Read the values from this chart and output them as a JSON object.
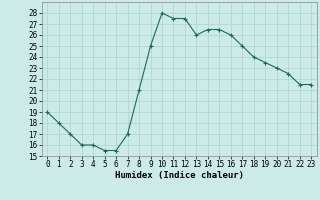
{
  "x": [
    0,
    1,
    2,
    3,
    4,
    5,
    6,
    7,
    8,
    9,
    10,
    11,
    12,
    13,
    14,
    15,
    16,
    17,
    18,
    19,
    20,
    21,
    22,
    23
  ],
  "y": [
    19,
    18,
    17,
    16,
    16,
    15.5,
    15.5,
    17,
    21,
    25,
    28,
    27.5,
    27.5,
    26,
    26.5,
    26.5,
    26,
    25,
    24,
    23.5,
    23,
    22.5,
    21.5,
    21.5
  ],
  "line_color": "#1a6b5a",
  "marker": "+",
  "marker_color": "#1a6b5a",
  "bg_color": "#cceae7",
  "grid_color": "#aad4d0",
  "xlabel": "Humidex (Indice chaleur)",
  "xlim": [
    -0.5,
    23.5
  ],
  "ylim": [
    15,
    29
  ],
  "yticks": [
    15,
    16,
    17,
    18,
    19,
    20,
    21,
    22,
    23,
    24,
    25,
    26,
    27,
    28
  ],
  "xticks": [
    0,
    1,
    2,
    3,
    4,
    5,
    6,
    7,
    8,
    9,
    10,
    11,
    12,
    13,
    14,
    15,
    16,
    17,
    18,
    19,
    20,
    21,
    22,
    23
  ],
  "tick_fontsize": 5.5,
  "xlabel_fontsize": 6.5
}
